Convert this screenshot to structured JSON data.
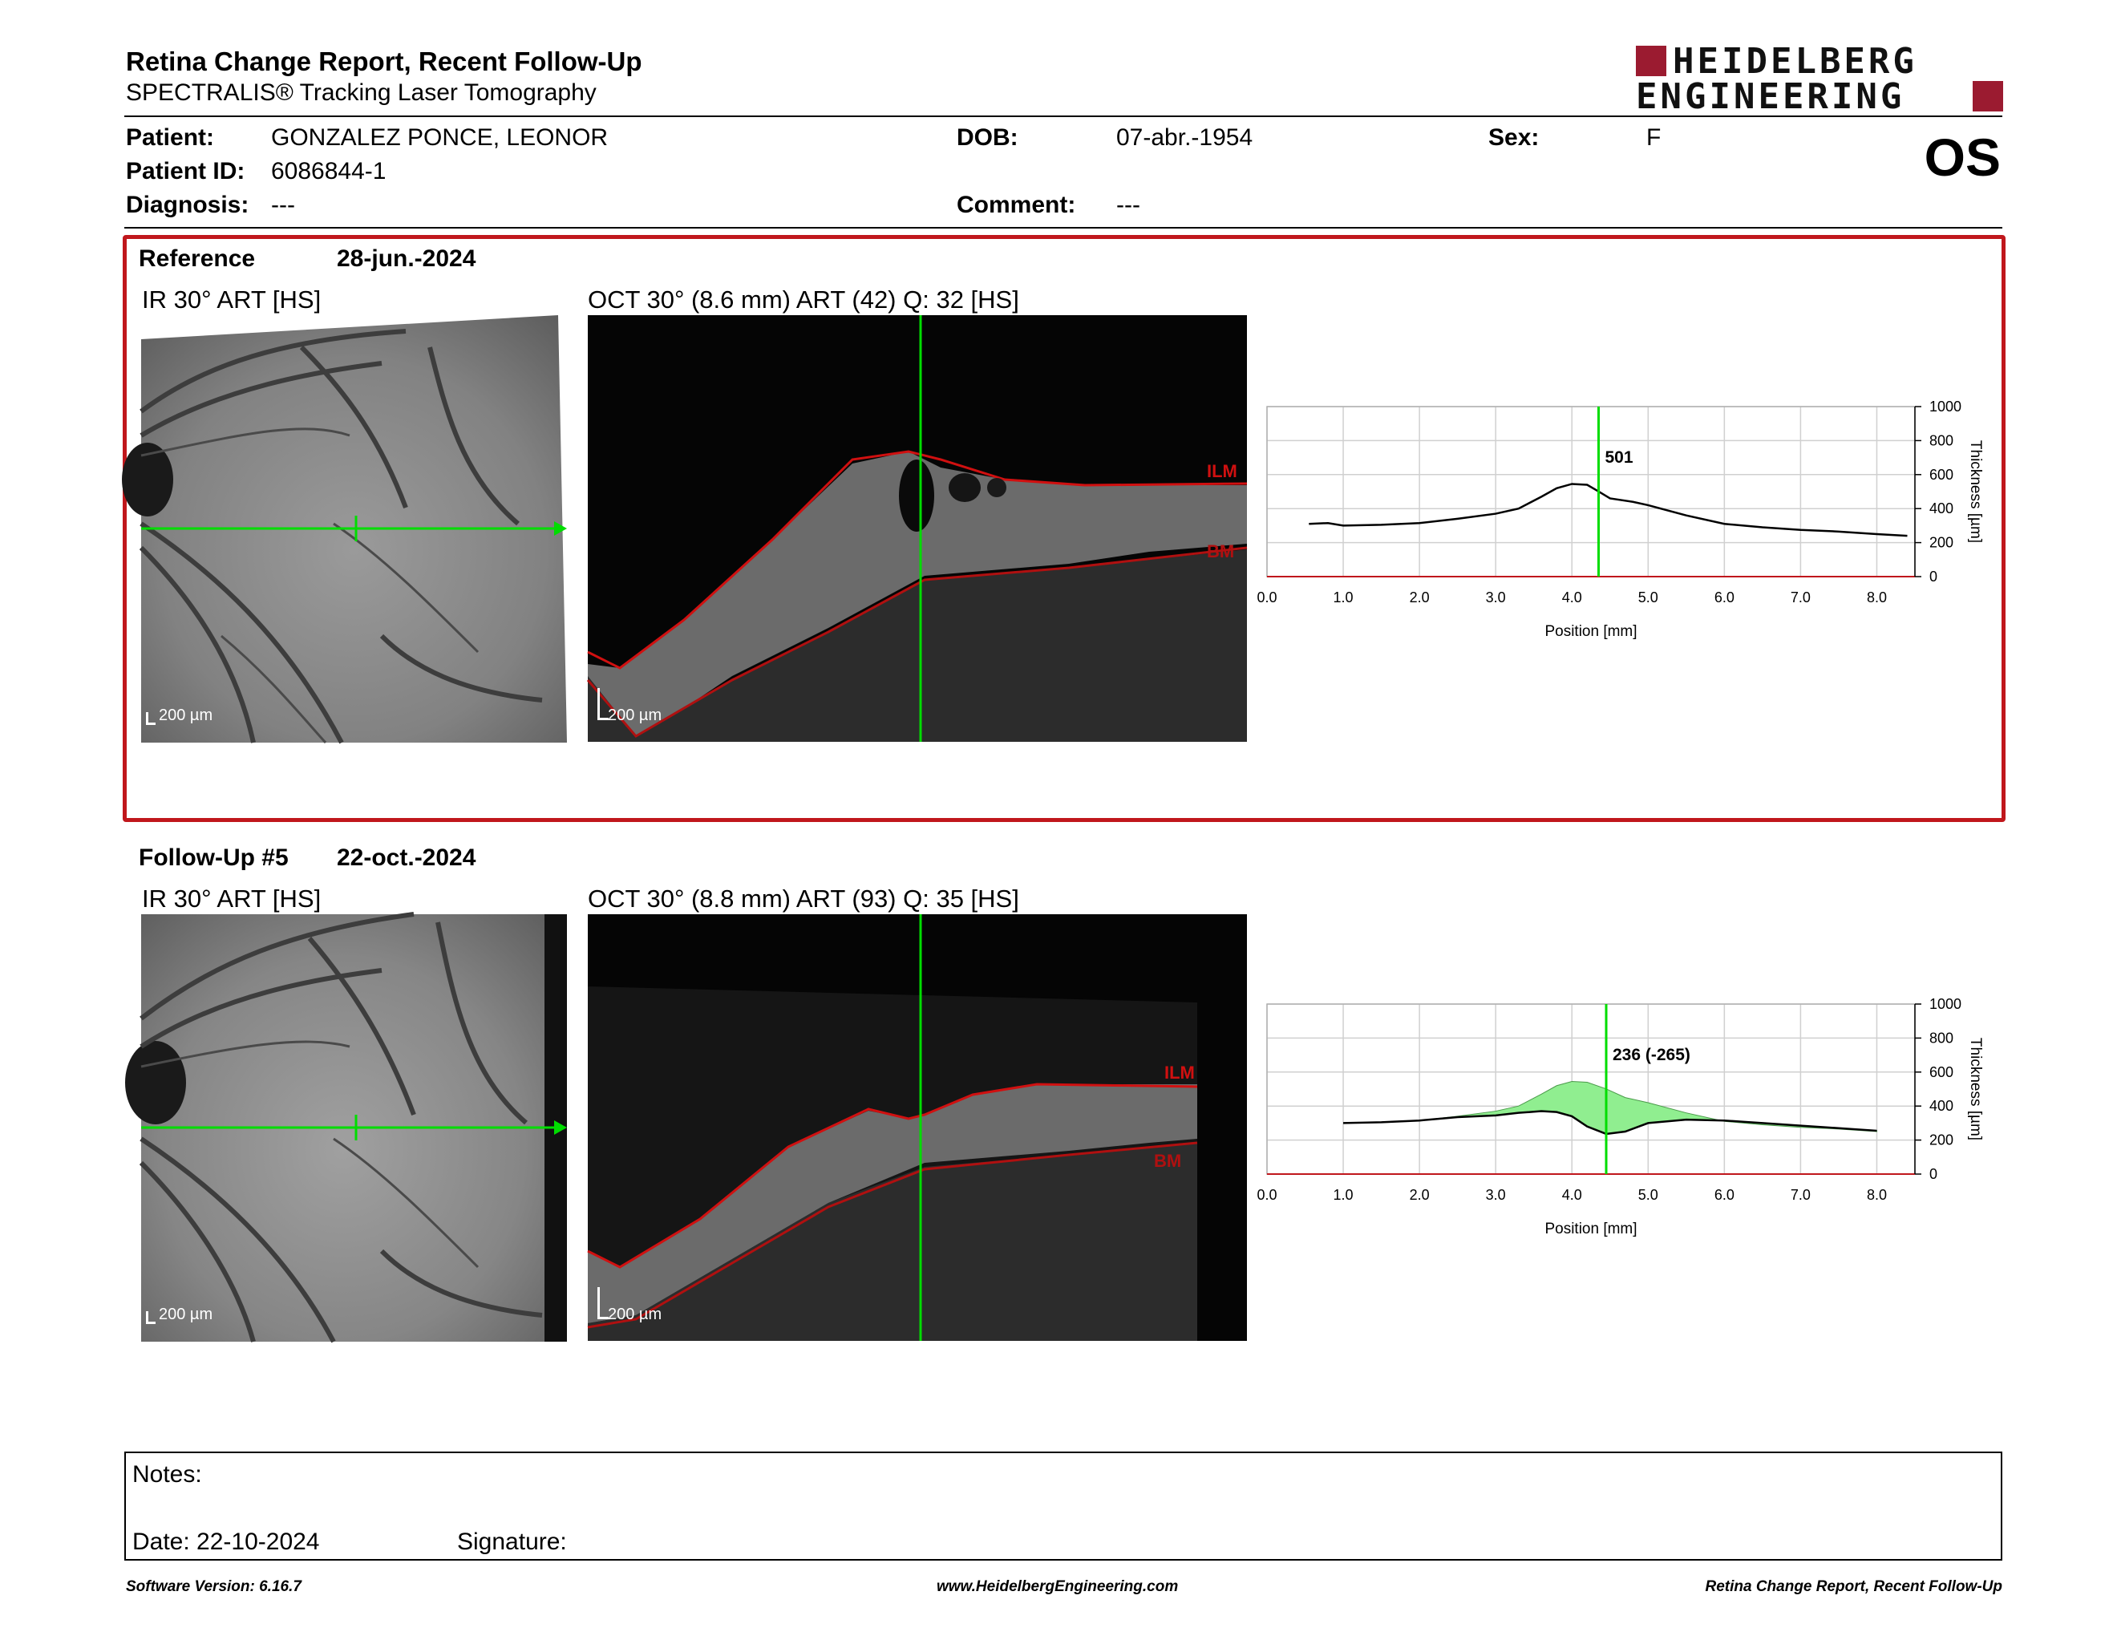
{
  "header": {
    "title": "Retina Change Report, Recent Follow-Up",
    "subtitle": "SPECTRALIS® Tracking Laser Tomography",
    "logo_line1": "HEIDELBERG",
    "logo_line2": "ENGINEERING",
    "eye": "OS"
  },
  "patient": {
    "patient_label": "Patient:",
    "patient_name": "GONZALEZ PONCE, LEONOR",
    "id_label": "Patient ID:",
    "id": "6086844-1",
    "diagnosis_label": "Diagnosis:",
    "diagnosis": "---",
    "dob_label": "DOB:",
    "dob": "07-abr.-1954",
    "comment_label": "Comment:",
    "comment": "---",
    "sex_label": "Sex:",
    "sex": "F"
  },
  "reference": {
    "title": "Reference",
    "date": "28-jun.-2024",
    "ir_label": "IR 30° ART [HS]",
    "oct_label": "OCT 30° (8.6 mm) ART (42) Q: 32 [HS]",
    "scale": "200 µm",
    "ilm": "ILM",
    "bm": "BM"
  },
  "followup": {
    "title": "Follow-Up #5",
    "date": "22-oct.-2024",
    "ir_label": "IR 30° ART [HS]",
    "oct_label": "OCT 30° (8.8 mm) ART (93) Q: 35 [HS]",
    "scale": "200 µm",
    "ilm": "ILM",
    "bm": "BM"
  },
  "chart_data": [
    {
      "type": "line",
      "xlabel": "Position [mm]",
      "ylabel": "Thickness [µm]",
      "xlim": [
        0,
        8.5
      ],
      "ylim": [
        0,
        1000
      ],
      "x_ticks": [
        "0.0",
        "1.0",
        "2.0",
        "3.0",
        "4.0",
        "5.0",
        "6.0",
        "7.0",
        "8.0"
      ],
      "y_ticks": [
        "0",
        "200",
        "400",
        "600",
        "800",
        "1000"
      ],
      "grid": true,
      "cursor_x": 4.35,
      "cursor_label": "501",
      "series": [
        {
          "x": [
            0.55,
            0.8,
            1.0,
            1.5,
            2.0,
            2.5,
            3.0,
            3.3,
            3.6,
            3.8,
            4.0,
            4.2,
            4.35,
            4.5,
            4.8,
            5.0,
            5.5,
            6.0,
            6.5,
            7.0,
            7.5,
            8.0,
            8.4
          ],
          "y": [
            310,
            315,
            300,
            305,
            315,
            340,
            370,
            400,
            470,
            520,
            545,
            540,
            501,
            460,
            440,
            420,
            360,
            310,
            290,
            275,
            265,
            250,
            240
          ]
        }
      ]
    },
    {
      "type": "area",
      "xlabel": "Position [mm]",
      "ylabel": "Thickness [µm]",
      "xlim": [
        0,
        8.5
      ],
      "ylim": [
        0,
        1000
      ],
      "x_ticks": [
        "0.0",
        "1.0",
        "2.0",
        "3.0",
        "4.0",
        "5.0",
        "6.0",
        "7.0",
        "8.0"
      ],
      "y_ticks": [
        "0",
        "200",
        "400",
        "600",
        "800",
        "1000"
      ],
      "grid": true,
      "cursor_x": 4.45,
      "cursor_label": "236 (-265)",
      "fill_color": "#90ee90",
      "series": [
        {
          "x": [
            1.0,
            1.5,
            2.0,
            2.5,
            3.0,
            3.3,
            3.6,
            3.8,
            4.0,
            4.2,
            4.45,
            4.7,
            5.0,
            5.5,
            6.0,
            6.5,
            7.0,
            7.5,
            8.0
          ],
          "y": [
            300,
            305,
            315,
            340,
            370,
            400,
            470,
            520,
            545,
            540,
            501,
            450,
            420,
            360,
            310,
            290,
            275,
            265,
            250
          ]
        },
        {
          "x": [
            1.0,
            1.5,
            2.0,
            2.5,
            3.0,
            3.3,
            3.6,
            3.8,
            4.0,
            4.2,
            4.45,
            4.7,
            5.0,
            5.5,
            6.0,
            6.5,
            7.0,
            7.5,
            8.0
          ],
          "y": [
            300,
            305,
            315,
            335,
            345,
            360,
            370,
            365,
            340,
            280,
            236,
            250,
            300,
            320,
            315,
            300,
            285,
            270,
            255
          ]
        }
      ]
    }
  ],
  "notes": {
    "notes_label": "Notes:",
    "date_label": "Date: 22-10-2024",
    "signature_label": "Signature:"
  },
  "footer": {
    "software": "Software Version: 6.16.7",
    "website": "www.HeidelbergEngineering.com",
    "report": "Retina Change Report, Recent Follow-Up"
  },
  "colors": {
    "accent_red": "#c0171c",
    "cursor_green": "#00dd00",
    "logo_red": "#9b1b30"
  }
}
